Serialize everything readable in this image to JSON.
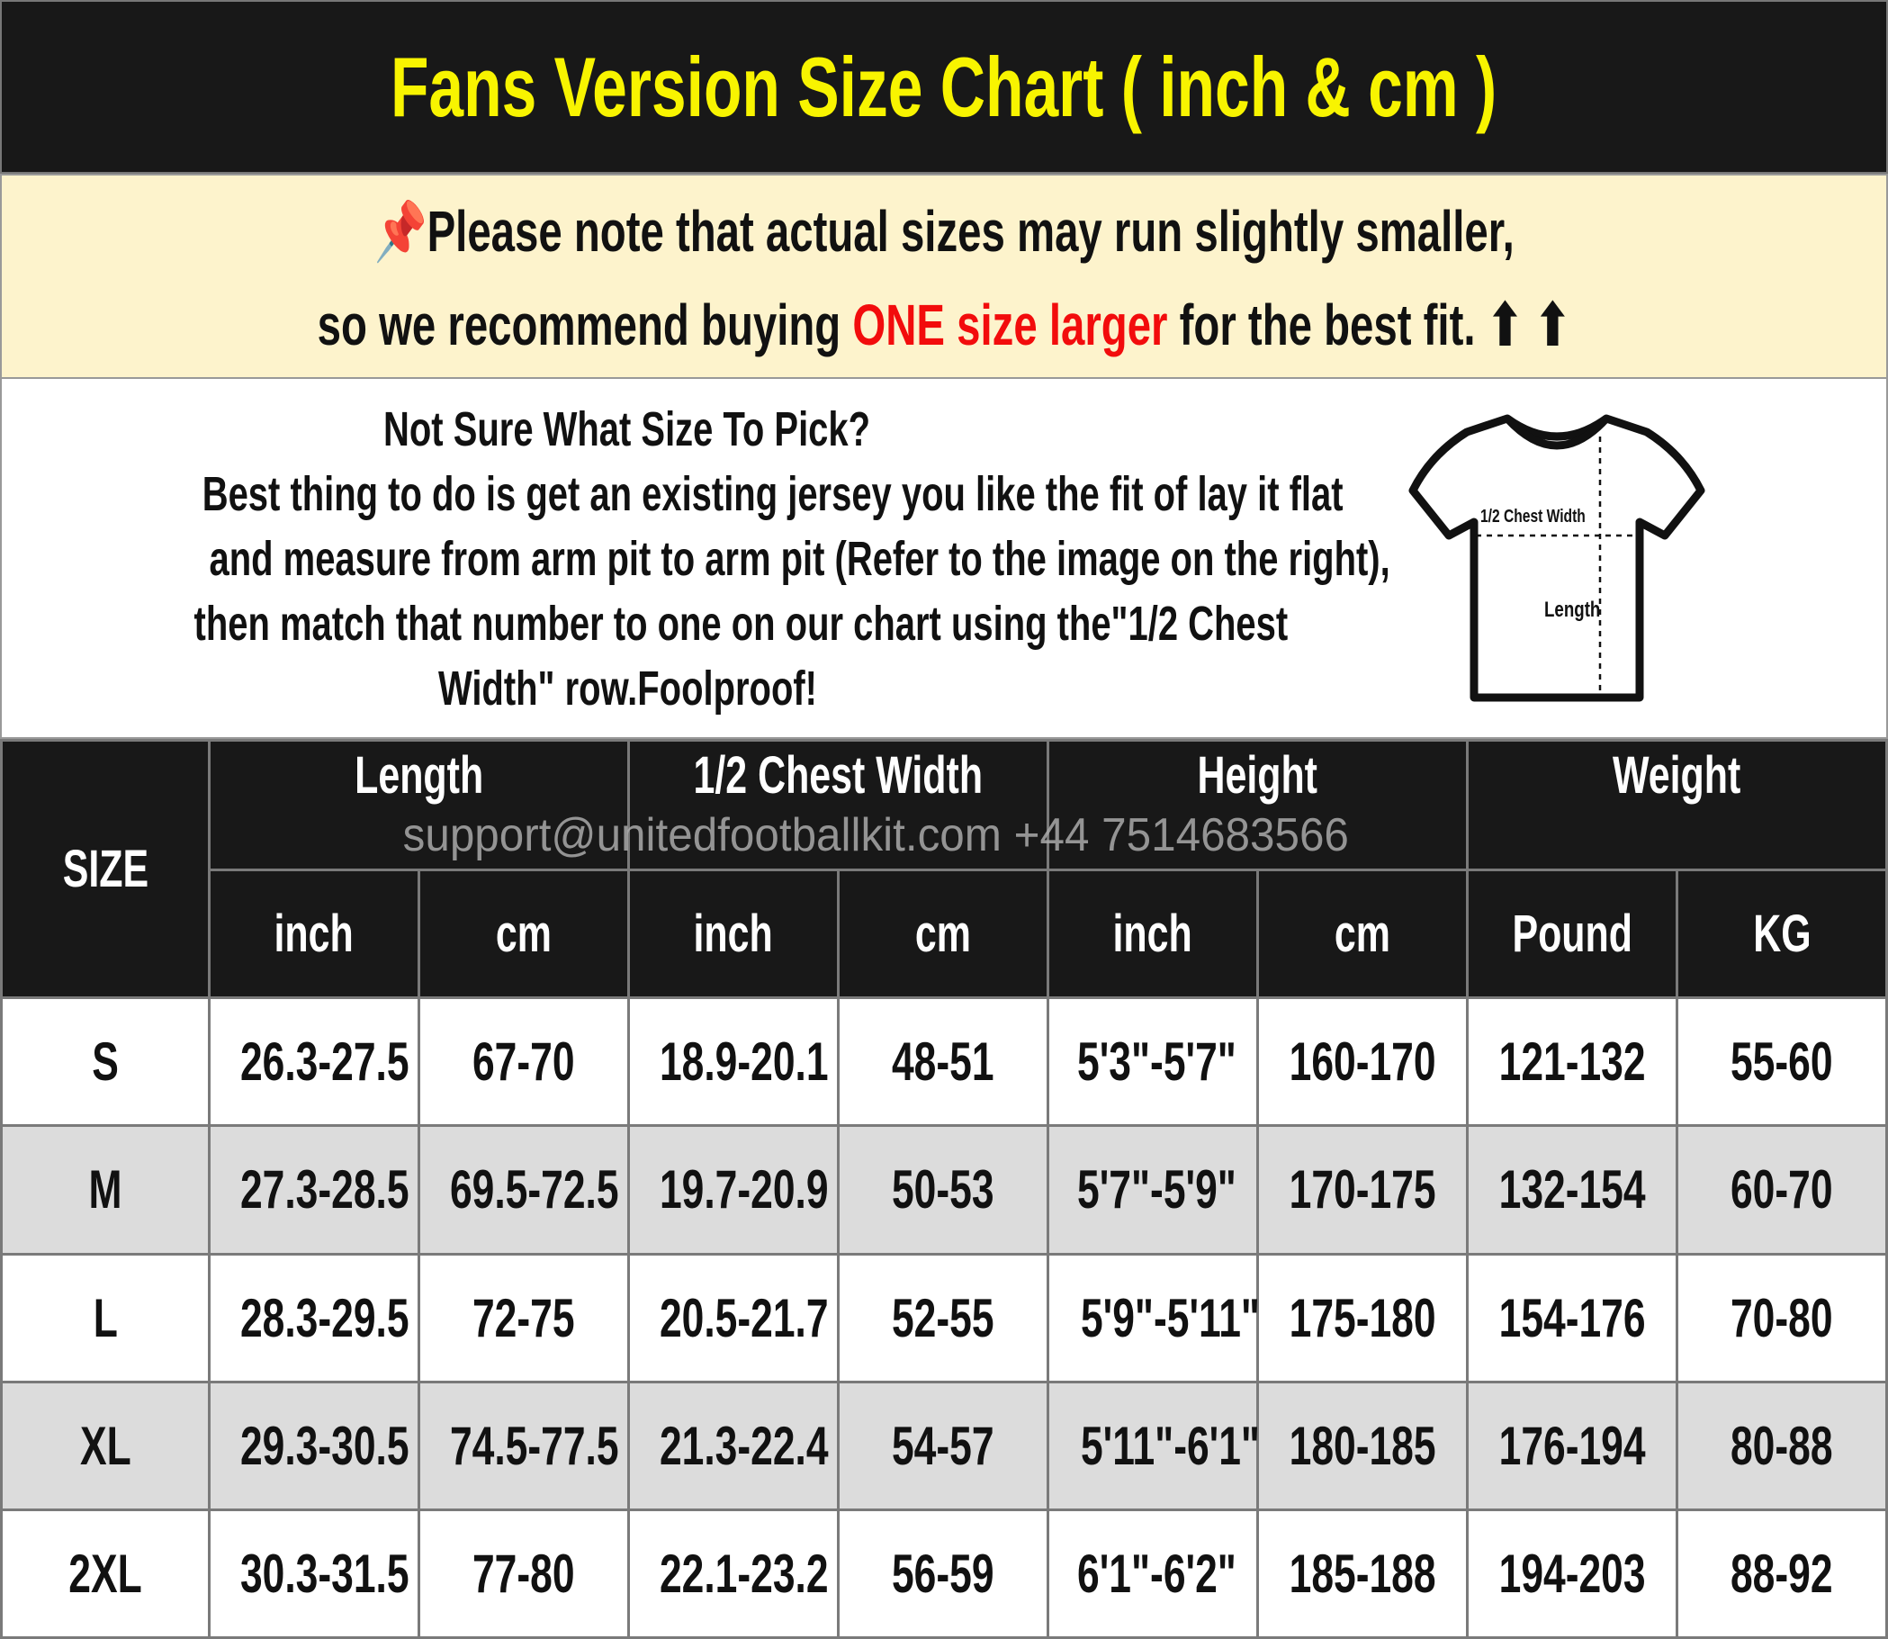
{
  "title": "Fans Version Size Chart ( inch & cm )",
  "note": {
    "icon": "pushpin-icon",
    "line1": "Please note that actual sizes may run slightly smaller,",
    "line2_pre": "so we recommend buying ",
    "line2_highlight": "ONE size larger",
    "line2_post": " for the best fit.",
    "arrows": "⬆ ⬆",
    "highlight_color": "#f20c0c"
  },
  "info": {
    "heading": "Not Sure What Size To Pick?",
    "lines": [
      "Best thing to do is get an existing jersey you like the fit of lay it flat",
      "and measure from arm pit to arm pit (Refer to the image on the right),",
      "then match that number to one on our chart using the\"1/2 Chest",
      "Width\" row.Foolproof!"
    ],
    "shirt_labels": {
      "chest": "1/2 Chest Width",
      "length": "Length"
    }
  },
  "watermark": "support@unitedfootballkit.com   +44 7514683566",
  "table": {
    "size_header": "SIZE",
    "groups": [
      "Length",
      "1/2 Chest Width",
      "Height",
      "Weight"
    ],
    "units": [
      "inch",
      "cm",
      "inch",
      "cm",
      "inch",
      "cm",
      "Pound",
      "KG"
    ],
    "rows": [
      [
        "S",
        "26.3-27.5",
        "67-70",
        "18.9-20.1",
        "48-51",
        "5'3\"-5'7\"",
        "160-170",
        "121-132",
        "55-60"
      ],
      [
        "M",
        "27.3-28.5",
        "69.5-72.5",
        "19.7-20.9",
        "50-53",
        "5'7\"-5'9\"",
        "170-175",
        "132-154",
        "60-70"
      ],
      [
        "L",
        "28.3-29.5",
        "72-75",
        "20.5-21.7",
        "52-55",
        "5'9\"-5'11\"",
        "175-180",
        "154-176",
        "70-80"
      ],
      [
        "XL",
        "29.3-30.5",
        "74.5-77.5",
        "21.3-22.4",
        "54-57",
        "5'11\"-6'1\"",
        "180-185",
        "176-194",
        "80-88"
      ],
      [
        "2XL",
        "30.3-31.5",
        "77-80",
        "22.1-23.2",
        "56-59",
        "6'1\"-6'2\"",
        "185-188",
        "194-203",
        "88-92"
      ]
    ]
  }
}
